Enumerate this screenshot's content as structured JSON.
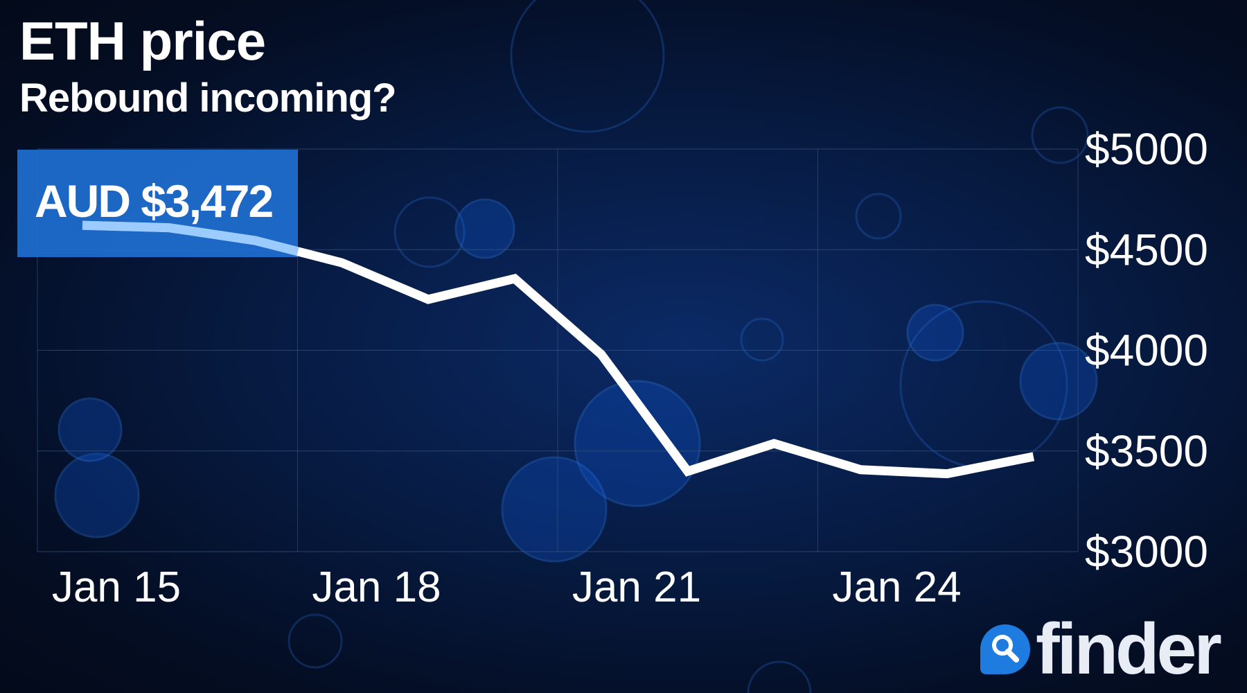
{
  "title": "ETH price",
  "subtitle": "Rebound incoming?",
  "brand": "finder",
  "colors": {
    "line": "#ffffff",
    "callout_box": "#1f6fd1",
    "accent": "#1e7be0",
    "background": "#061a40"
  },
  "chart_data": {
    "type": "line",
    "title": "ETH price",
    "subtitle": "Rebound incoming?",
    "callout": "AUD $3,472",
    "x": [
      "Jan 15",
      "Jan 16",
      "Jan 17",
      "Jan 18",
      "Jan 19",
      "Jan 20",
      "Jan 21",
      "Jan 22",
      "Jan 23",
      "Jan 24",
      "Jan 25",
      "Jan 26"
    ],
    "values": [
      4621,
      4609,
      4545,
      4435,
      4253,
      4356,
      3980,
      3399,
      3537,
      3407,
      3387,
      3472
    ],
    "x_ticks": [
      "Jan 15",
      "Jan 18",
      "Jan 21",
      "Jan 24"
    ],
    "y_ticks": [
      "$5000",
      "$4500",
      "$4000",
      "$3500",
      "$3000"
    ],
    "ylim": [
      3000,
      5000
    ],
    "grid": true,
    "y_axis_position": "right"
  }
}
